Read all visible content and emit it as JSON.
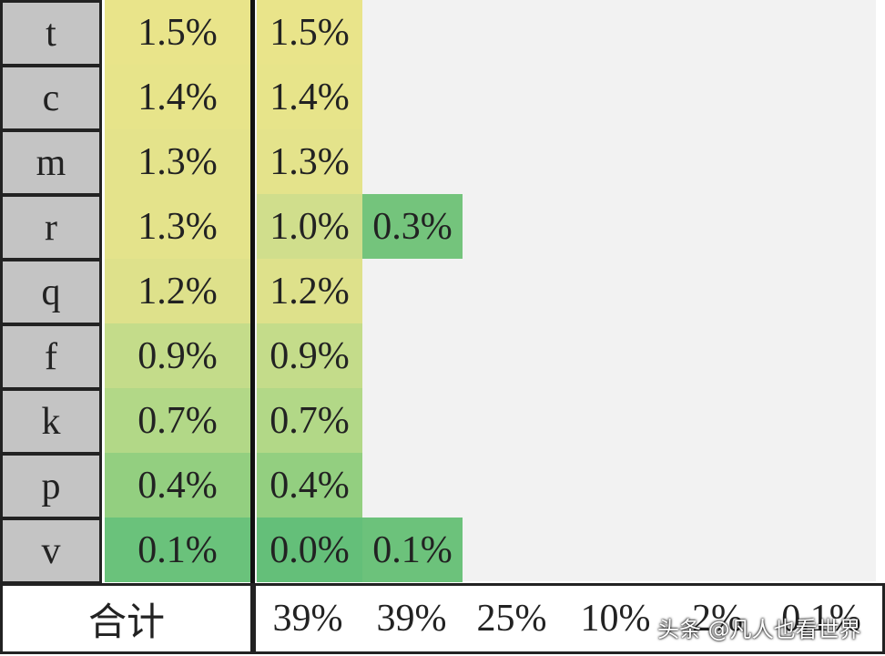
{
  "table": {
    "rows": [
      {
        "label": "t",
        "total": "1.5%",
        "color": "#e9e48a",
        "cells": [
          {
            "text": "1.5%",
            "color": "#e9e48a"
          }
        ]
      },
      {
        "label": "c",
        "total": "1.4%",
        "color": "#e7e48a",
        "cells": [
          {
            "text": "1.4%",
            "color": "#e7e48a"
          }
        ]
      },
      {
        "label": "m",
        "total": "1.3%",
        "color": "#e4e38b",
        "cells": [
          {
            "text": "1.3%",
            "color": "#e4e38b"
          }
        ]
      },
      {
        "label": "r",
        "total": "1.3%",
        "color": "#e4e38b",
        "cells": [
          {
            "text": "1.0%",
            "color": "#d0de8c"
          },
          {
            "text": "0.3%",
            "color": "#74c47c"
          }
        ]
      },
      {
        "label": "q",
        "total": "1.2%",
        "color": "#dee18b",
        "cells": [
          {
            "text": "1.2%",
            "color": "#dee18b"
          }
        ]
      },
      {
        "label": "f",
        "total": "0.9%",
        "color": "#c4dc8a",
        "cells": [
          {
            "text": "0.9%",
            "color": "#c4dc8a"
          }
        ]
      },
      {
        "label": "k",
        "total": "0.7%",
        "color": "#b2d887",
        "cells": [
          {
            "text": "0.7%",
            "color": "#b2d887"
          }
        ]
      },
      {
        "label": "p",
        "total": "0.4%",
        "color": "#93cf80",
        "cells": [
          {
            "text": "0.4%",
            "color": "#93cf80"
          }
        ]
      },
      {
        "label": "v",
        "total": "0.1%",
        "color": "#6ac27b",
        "cells": [
          {
            "text": "0.0%",
            "color": "#64bf79"
          },
          {
            "text": "0.1%",
            "color": "#6cc27b"
          }
        ]
      }
    ],
    "footer": {
      "label": "合计",
      "values": [
        "39%",
        "39%",
        "25%",
        "10%",
        "2%",
        "0.1%"
      ]
    }
  },
  "watermark": "头条 @凡人也看世界"
}
